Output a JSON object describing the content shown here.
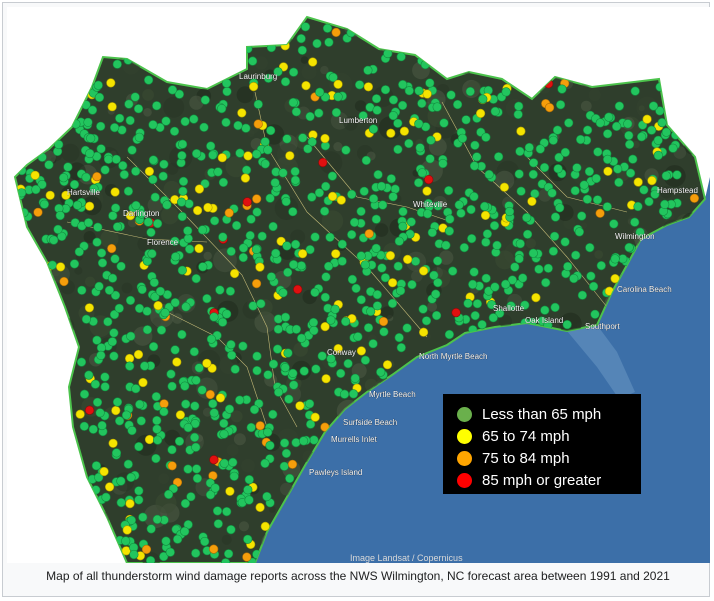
{
  "caption": "Map of all thunderstorm wind damage reports across the NWS Wilmington, NC forecast area between 1991 and 2021",
  "imagery_credit": "Image Landsat / Copernicus",
  "legend": [
    {
      "label": "Less than 65 mph",
      "color": "#6ab04c"
    },
    {
      "label": "65 to 74 mph",
      "color": "#ffff00"
    },
    {
      "label": "75 to 84 mph",
      "color": "#ffa500"
    },
    {
      "label": "85 mph or greater",
      "color": "#ff0000"
    }
  ],
  "places": [
    {
      "name": "Lumberton"
    },
    {
      "name": "Whiteville"
    },
    {
      "name": "Hartsville"
    },
    {
      "name": "Darlington"
    },
    {
      "name": "Florence"
    },
    {
      "name": "Wilmington"
    },
    {
      "name": "Hampstead"
    },
    {
      "name": "Carolina Beach"
    },
    {
      "name": "Shallotte"
    },
    {
      "name": "Oak Island"
    },
    {
      "name": "Southport"
    },
    {
      "name": "North Myrtle Beach"
    },
    {
      "name": "Conway"
    },
    {
      "name": "Myrtle Beach"
    },
    {
      "name": "Surfside Beach"
    },
    {
      "name": "Murrells Inlet"
    },
    {
      "name": "Pawleys Island"
    },
    {
      "name": "Laurinburg"
    }
  ],
  "colors": {
    "ocean": "#3c6fa8",
    "land": "#2f3e2c",
    "dot_green": "#22c55e",
    "dot_yellow": "#f5e400",
    "dot_orange": "#f59e0b",
    "dot_red": "#e01010"
  }
}
